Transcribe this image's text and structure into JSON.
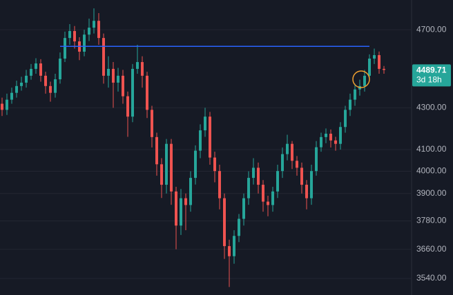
{
  "chart_data": {
    "type": "candlestick",
    "log_scale": true,
    "grid": true,
    "up_color": "#26a69a",
    "down_color": "#ef5350",
    "ylim": [
      3474,
      4862
    ],
    "yticks": [
      {
        "value": 4700,
        "label": "4700.00"
      },
      {
        "value": 4300,
        "label": "4300.00"
      },
      {
        "value": 4100,
        "label": "4100.00"
      },
      {
        "value": 4000,
        "label": "4000.00"
      },
      {
        "value": 3900,
        "label": "3900.00"
      },
      {
        "value": 3780,
        "label": "3780.00"
      },
      {
        "value": 3660,
        "label": "3660.00"
      },
      {
        "value": 3540,
        "label": "3540.00"
      }
    ],
    "open": [
      4320,
      4290,
      4340,
      4374,
      4408,
      4425,
      4460,
      4495,
      4523,
      4460,
      4408,
      4374,
      4442,
      4548,
      4656,
      4693,
      4638,
      4584,
      4674,
      4711,
      4748,
      4656,
      4460,
      4495,
      4425,
      4460,
      4357,
      4257,
      4495,
      4530,
      4460,
      4290,
      4159,
      4032,
      3939,
      4127,
      3909,
      3760,
      3879,
      3849,
      3970,
      4095,
      4191,
      4257,
      4063,
      4001,
      3879,
      3673,
      3631,
      3716,
      3789,
      3879,
      3970,
      4016,
      3939,
      3864,
      3849,
      3909,
      4001,
      4079,
      4127,
      4048,
      4016,
      3939,
      3879,
      4001,
      4111,
      4159,
      4175,
      4143,
      4127,
      4207,
      4290,
      4340,
      4391,
      4408,
      4460,
      4548,
      4566,
      4495
    ],
    "high": [
      4350,
      4370,
      4400,
      4435,
      4455,
      4490,
      4520,
      4550,
      4545,
      4480,
      4430,
      4470,
      4580,
      4690,
      4730,
      4720,
      4660,
      4700,
      4760,
      4816,
      4790,
      4680,
      4560,
      4530,
      4500,
      4490,
      4380,
      4520,
      4620,
      4560,
      4480,
      4310,
      4180,
      4060,
      4150,
      4150,
      3930,
      3920,
      3900,
      4000,
      4120,
      4220,
      4300,
      4280,
      4090,
      4030,
      3900,
      3700,
      3740,
      3810,
      3900,
      4000,
      4060,
      4040,
      3960,
      3890,
      3930,
      4030,
      4110,
      4170,
      4140,
      4070,
      4040,
      3960,
      4030,
      4140,
      4180,
      4200,
      4195,
      4160,
      4230,
      4310,
      4370,
      4420,
      4440,
      4490,
      4570,
      4600,
      4585,
      4510
    ],
    "low": [
      4260,
      4265,
      4320,
      4350,
      4385,
      4400,
      4440,
      4470,
      4430,
      4370,
      4330,
      4350,
      4420,
      4530,
      4620,
      4600,
      4540,
      4560,
      4640,
      4680,
      4620,
      4420,
      4400,
      4300,
      4380,
      4320,
      4160,
      4230,
      4470,
      4400,
      4250,
      4110,
      3980,
      3880,
      3900,
      3850,
      3660,
      3720,
      3740,
      3820,
      3940,
      4060,
      4160,
      4030,
      3950,
      3830,
      3620,
      3506,
      3600,
      3690,
      3760,
      3850,
      3940,
      3900,
      3820,
      3800,
      3820,
      3880,
      3970,
      4050,
      4010,
      3980,
      3900,
      3830,
      3850,
      3980,
      4090,
      4130,
      4110,
      4095,
      4100,
      4180,
      4260,
      4310,
      4360,
      4380,
      4440,
      4520,
      4470,
      4470
    ],
    "close": [
      4290,
      4340,
      4374,
      4408,
      4425,
      4460,
      4495,
      4523,
      4460,
      4408,
      4374,
      4442,
      4548,
      4656,
      4693,
      4638,
      4584,
      4674,
      4711,
      4748,
      4656,
      4460,
      4495,
      4425,
      4460,
      4357,
      4257,
      4495,
      4530,
      4460,
      4290,
      4159,
      4032,
      3939,
      4127,
      3909,
      3760,
      3879,
      3849,
      3970,
      4095,
      4191,
      4257,
      4063,
      4001,
      3879,
      3673,
      3631,
      3716,
      3789,
      3879,
      3970,
      4016,
      3939,
      3864,
      3849,
      3909,
      4001,
      4079,
      4127,
      4048,
      4016,
      3939,
      3879,
      4001,
      4111,
      4159,
      4175,
      4143,
      4127,
      4207,
      4290,
      4340,
      4391,
      4408,
      4460,
      4548,
      4566,
      4495,
      4489.71
    ],
    "level_line": {
      "value": 4612,
      "color": "#2962ff"
    },
    "last_price": 4489.71,
    "countdown": "3d 18h",
    "last_price_color": "#26a69a"
  }
}
